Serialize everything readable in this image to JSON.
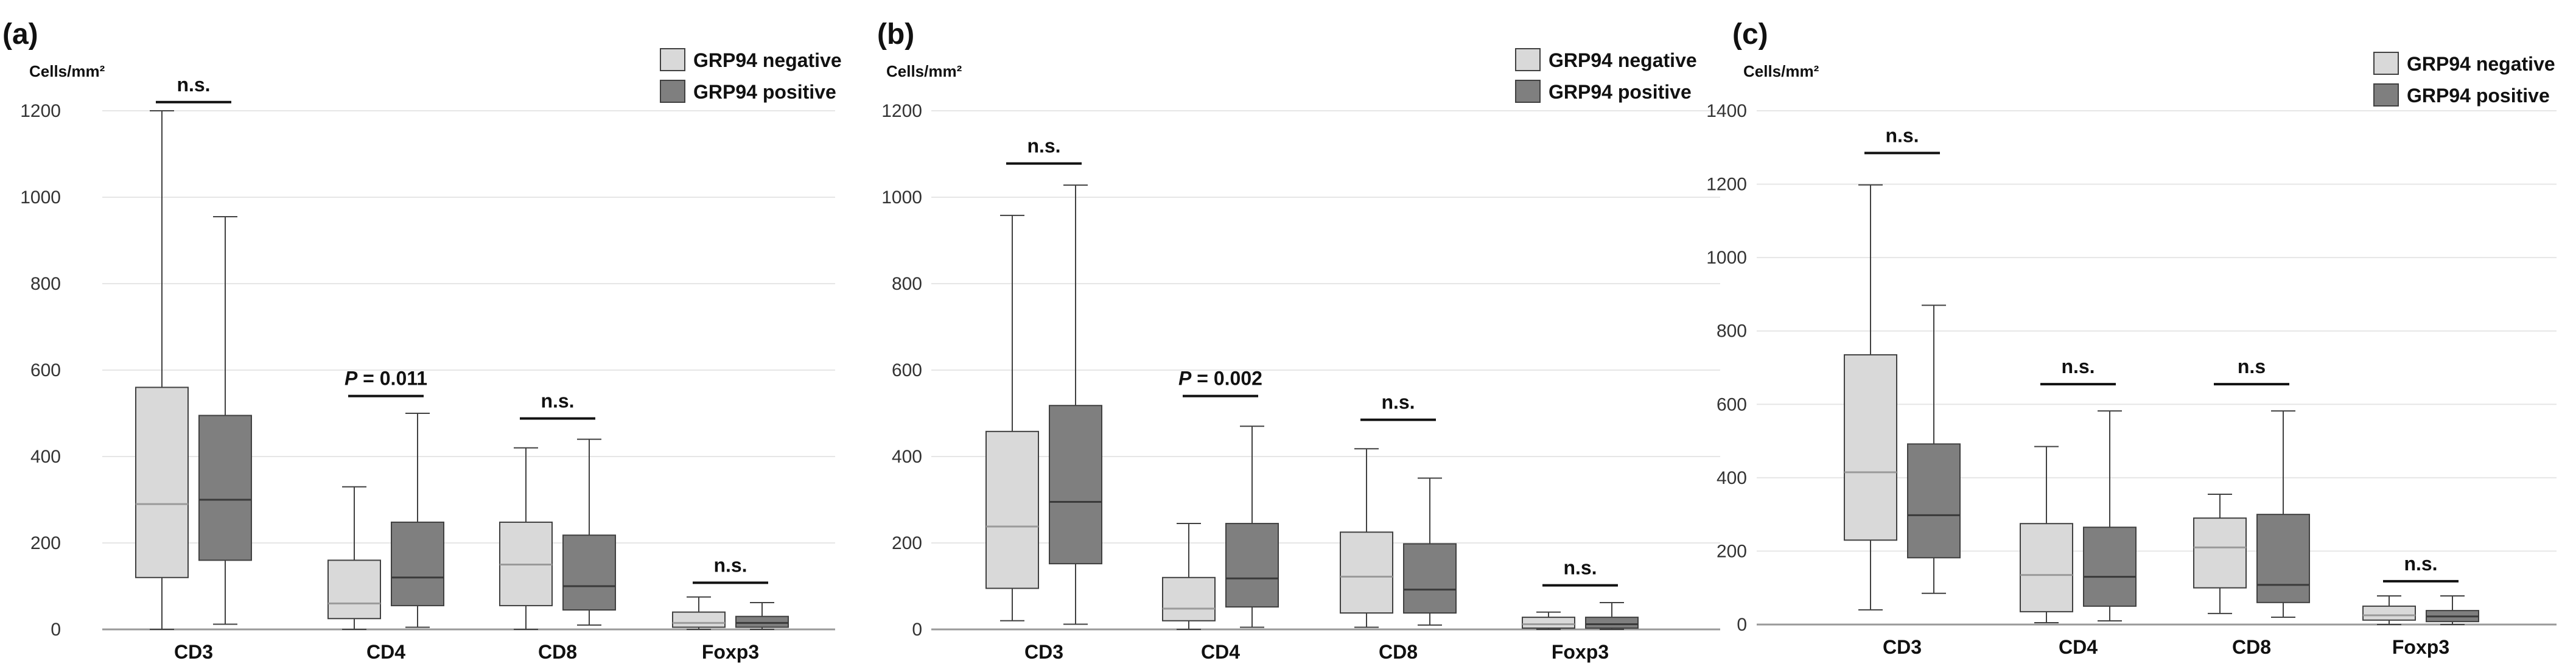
{
  "colors": {
    "negative_fill": "#d9d9d9",
    "positive_fill": "#7f7f7f",
    "box_stroke": "#404040",
    "grid": "#e6e6e6",
    "axis": "#999999",
    "text": "#111111"
  },
  "chart_data": [
    {
      "type": "box",
      "panel_label": "(a)",
      "ylabel": "Cells/mm²",
      "categories": [
        "CD3",
        "CD4",
        "CD8",
        "Foxp3"
      ],
      "ylim": [
        0,
        1200
      ],
      "yticks": [
        0,
        200,
        400,
        600,
        800,
        1000,
        1200
      ],
      "grid": true,
      "legend": "top-right",
      "series": [
        {
          "name": "GRP94 negative",
          "boxes": [
            {
              "min": 0,
              "q1": 120,
              "median": 290,
              "q3": 560,
              "max": 1200
            },
            {
              "min": 0,
              "q1": 25,
              "median": 60,
              "q3": 160,
              "max": 330
            },
            {
              "min": 0,
              "q1": 55,
              "median": 150,
              "q3": 248,
              "max": 420
            },
            {
              "min": 0,
              "q1": 5,
              "median": 15,
              "q3": 40,
              "max": 75
            }
          ]
        },
        {
          "name": "GRP94 positive",
          "boxes": [
            {
              "min": 12,
              "q1": 160,
              "median": 300,
              "q3": 495,
              "max": 955
            },
            {
              "min": 5,
              "q1": 55,
              "median": 120,
              "q3": 248,
              "max": 500
            },
            {
              "min": 10,
              "q1": 45,
              "median": 100,
              "q3": 218,
              "max": 440
            },
            {
              "min": 0,
              "q1": 5,
              "median": 15,
              "q3": 30,
              "max": 62
            }
          ]
        }
      ],
      "annotations": [
        {
          "category": "CD3",
          "text": "n.s.",
          "y": 1220
        },
        {
          "category": "CD4",
          "prefix": "P",
          "text": " = 0.011",
          "y": 540
        },
        {
          "category": "CD8",
          "text": "n.s.",
          "y": 488
        },
        {
          "category": "Foxp3",
          "text": "n.s.",
          "y": 108
        }
      ]
    },
    {
      "type": "box",
      "panel_label": "(b)",
      "ylabel": "Cells/mm²",
      "categories": [
        "CD3",
        "CD4",
        "CD8",
        "Foxp3"
      ],
      "ylim": [
        0,
        1200
      ],
      "yticks": [
        0,
        200,
        400,
        600,
        800,
        1000,
        1200
      ],
      "grid": true,
      "legend": "top-right",
      "series": [
        {
          "name": "GRP94 negative",
          "boxes": [
            {
              "min": 20,
              "q1": 95,
              "median": 238,
              "q3": 458,
              "max": 958
            },
            {
              "min": 0,
              "q1": 20,
              "median": 48,
              "q3": 120,
              "max": 245
            },
            {
              "min": 5,
              "q1": 38,
              "median": 122,
              "q3": 225,
              "max": 418
            },
            {
              "min": 0,
              "q1": 3,
              "median": 12,
              "q3": 28,
              "max": 40
            }
          ]
        },
        {
          "name": "GRP94 positive",
          "boxes": [
            {
              "min": 12,
              "q1": 152,
              "median": 295,
              "q3": 518,
              "max": 1028
            },
            {
              "min": 5,
              "q1": 52,
              "median": 118,
              "q3": 245,
              "max": 470
            },
            {
              "min": 10,
              "q1": 38,
              "median": 92,
              "q3": 198,
              "max": 350
            },
            {
              "min": 0,
              "q1": 3,
              "median": 12,
              "q3": 28,
              "max": 62
            }
          ]
        }
      ],
      "annotations": [
        {
          "category": "CD3",
          "text": "n.s.",
          "y": 1078
        },
        {
          "category": "CD4",
          "prefix": "P",
          "text": " = 0.002",
          "y": 540
        },
        {
          "category": "CD8",
          "text": "n.s.",
          "y": 485
        },
        {
          "category": "Foxp3",
          "text": "n.s.",
          "y": 102
        }
      ]
    },
    {
      "type": "box",
      "panel_label": "(c)",
      "ylabel": "Cells/mm²",
      "categories": [
        "CD3",
        "CD4",
        "CD8",
        "Foxp3"
      ],
      "ylim": [
        0,
        1400
      ],
      "yticks": [
        0,
        200,
        400,
        600,
        800,
        1000,
        1200,
        1400
      ],
      "grid": true,
      "legend": "top-right",
      "series": [
        {
          "name": "GRP94 negative",
          "boxes": [
            {
              "min": 40,
              "q1": 230,
              "median": 415,
              "q3": 735,
              "max": 1198
            },
            {
              "min": 5,
              "q1": 35,
              "median": 135,
              "q3": 275,
              "max": 485
            },
            {
              "min": 30,
              "q1": 100,
              "median": 210,
              "q3": 290,
              "max": 355
            },
            {
              "min": 0,
              "q1": 12,
              "median": 25,
              "q3": 50,
              "max": 78
            }
          ]
        },
        {
          "name": "GRP94 positive",
          "boxes": [
            {
              "min": 85,
              "q1": 182,
              "median": 298,
              "q3": 492,
              "max": 870
            },
            {
              "min": 10,
              "q1": 50,
              "median": 130,
              "q3": 265,
              "max": 582
            },
            {
              "min": 20,
              "q1": 60,
              "median": 108,
              "q3": 300,
              "max": 582
            },
            {
              "min": 0,
              "q1": 8,
              "median": 22,
              "q3": 38,
              "max": 78
            }
          ]
        }
      ],
      "annotations": [
        {
          "category": "CD3",
          "text": "n.s.",
          "y": 1285
        },
        {
          "category": "CD4",
          "text": "n.s.",
          "y": 655
        },
        {
          "category": "CD8",
          "text": "n.s",
          "y": 655
        },
        {
          "category": "Foxp3",
          "text": "n.s.",
          "y": 118
        }
      ]
    }
  ]
}
